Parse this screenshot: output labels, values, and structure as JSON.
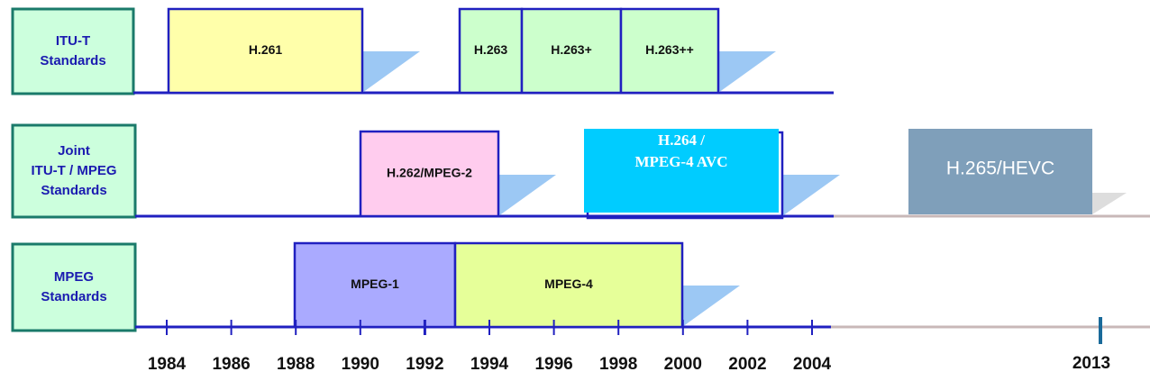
{
  "rows": [
    {
      "label": [
        "ITU-T",
        "Standards"
      ],
      "boxes": [
        "H.261",
        "H.263",
        "H.263+",
        "H.263++"
      ]
    },
    {
      "label": [
        "Joint",
        "ITU-T / MPEG",
        "Standards"
      ],
      "boxes": [
        "H.262/MPEG-2",
        "H.264 /",
        "MPEG-4 AVC",
        "H.265/HEVC"
      ]
    },
    {
      "label": [
        "MPEG",
        "Standards"
      ],
      "boxes": [
        "MPEG-1",
        "MPEG-4"
      ]
    }
  ],
  "axis": {
    "years": [
      "1984",
      "1986",
      "1988",
      "1990",
      "1992",
      "1994",
      "1996",
      "1998",
      "2000",
      "2002",
      "2004"
    ],
    "highlight": "2013"
  }
}
